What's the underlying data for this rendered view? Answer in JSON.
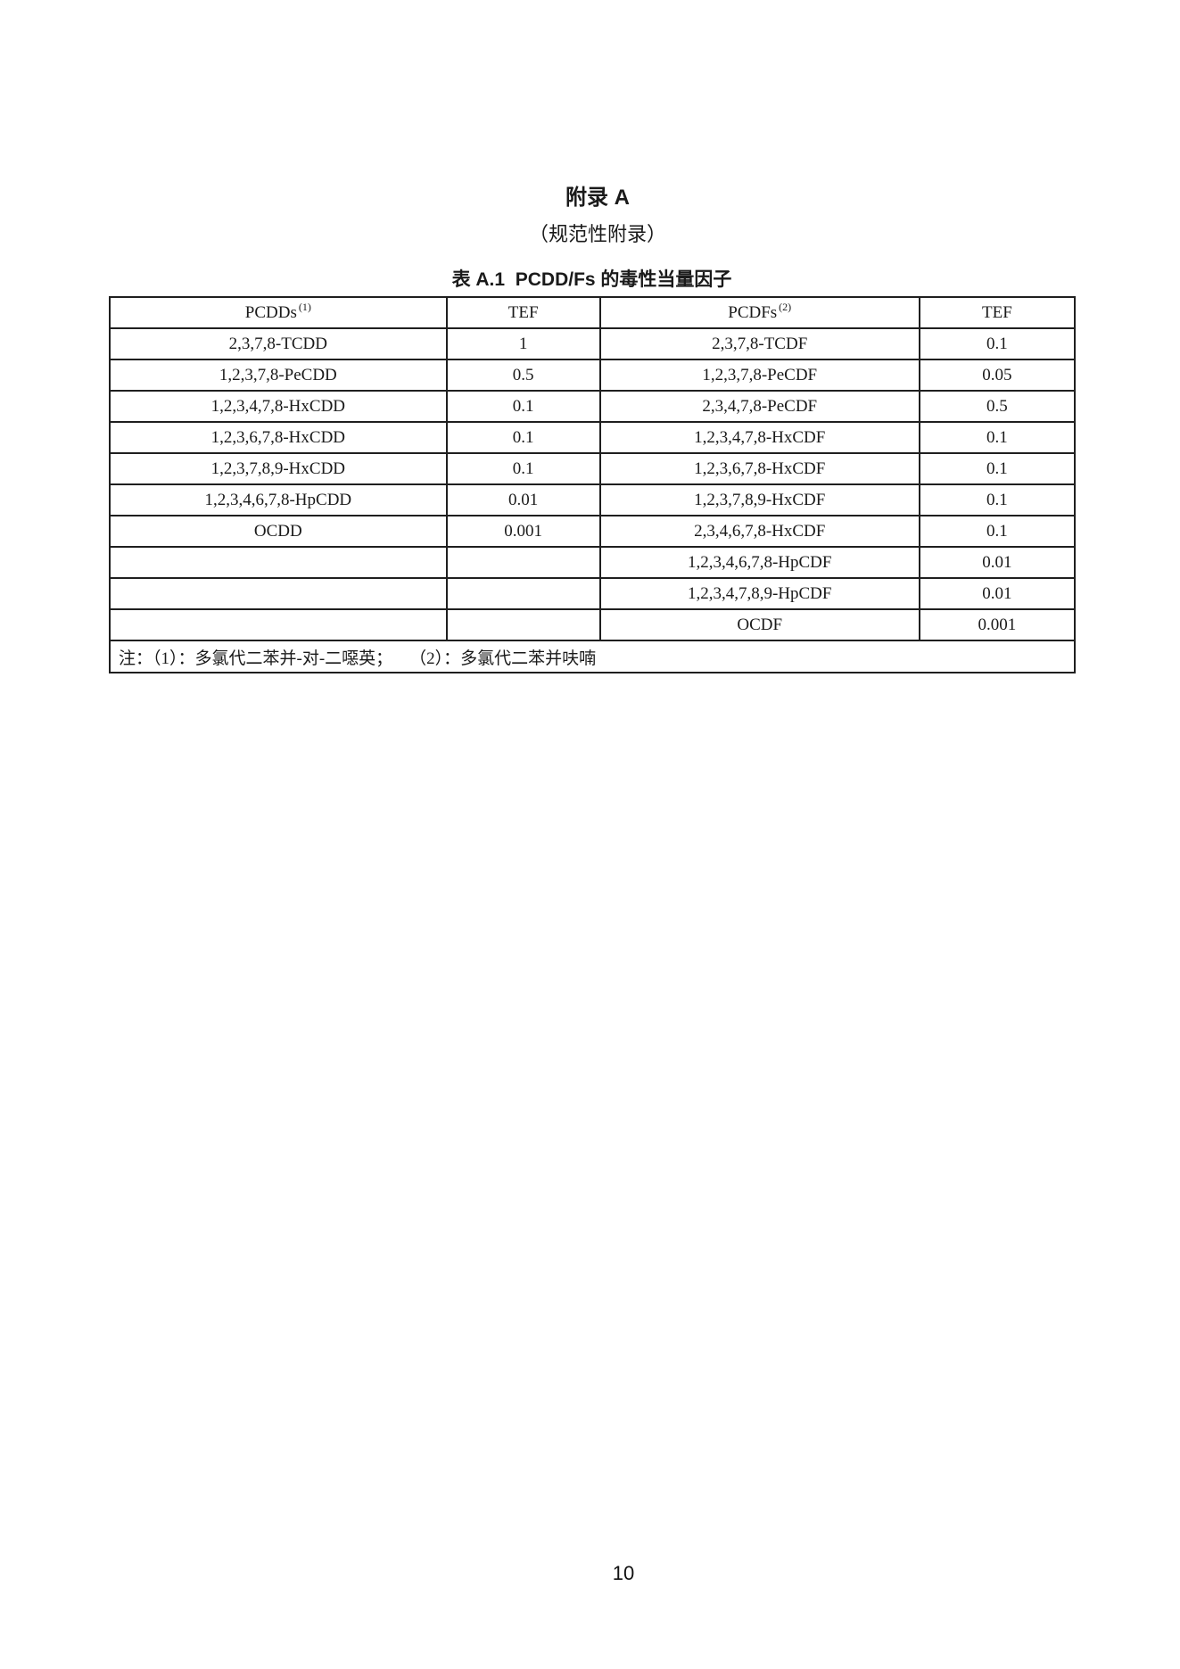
{
  "document": {
    "appendix_heading": "附录 A",
    "appendix_subheading": "（规范性附录）",
    "table_caption": "表 A.1  PCDD/Fs 的毒性当量因子",
    "page_number": "10"
  },
  "table": {
    "columns": [
      {
        "label": "PCDDs",
        "sup": "(1)"
      },
      {
        "label": "TEF",
        "sup": ""
      },
      {
        "label": "PCDFs",
        "sup": "(2)"
      },
      {
        "label": "TEF",
        "sup": ""
      }
    ],
    "rows": [
      {
        "pcdd": "2,3,7,8-TCDD",
        "pcdd_tef": "1",
        "pcdf": "2,3,7,8-TCDF",
        "pcdf_tef": "0.1"
      },
      {
        "pcdd": "1,2,3,7,8-PeCDD",
        "pcdd_tef": "0.5",
        "pcdf": "1,2,3,7,8-PeCDF",
        "pcdf_tef": "0.05"
      },
      {
        "pcdd": "1,2,3,4,7,8-HxCDD",
        "pcdd_tef": "0.1",
        "pcdf": "2,3,4,7,8-PeCDF",
        "pcdf_tef": "0.5"
      },
      {
        "pcdd": "1,2,3,6,7,8-HxCDD",
        "pcdd_tef": "0.1",
        "pcdf": "1,2,3,4,7,8-HxCDF",
        "pcdf_tef": "0.1"
      },
      {
        "pcdd": "1,2,3,7,8,9-HxCDD",
        "pcdd_tef": "0.1",
        "pcdf": "1,2,3,6,7,8-HxCDF",
        "pcdf_tef": "0.1"
      },
      {
        "pcdd": "1,2,3,4,6,7,8-HpCDD",
        "pcdd_tef": "0.01",
        "pcdf": "1,2,3,7,8,9-HxCDF",
        "pcdf_tef": "0.1"
      },
      {
        "pcdd": "OCDD",
        "pcdd_tef": "0.001",
        "pcdf": "2,3,4,6,7,8-HxCDF",
        "pcdf_tef": "0.1"
      },
      {
        "pcdd": "",
        "pcdd_tef": "",
        "pcdf": "1,2,3,4,6,7,8-HpCDF",
        "pcdf_tef": "0.01"
      },
      {
        "pcdd": "",
        "pcdd_tef": "",
        "pcdf": "1,2,3,4,7,8,9-HpCDF",
        "pcdf_tef": "0.01"
      },
      {
        "pcdd": "",
        "pcdd_tef": "",
        "pcdf": "OCDF",
        "pcdf_tef": "0.001"
      }
    ],
    "note": "注：（1）：多氯代二苯并-对-二噁英；    （2）：多氯代二苯并呋喃"
  }
}
